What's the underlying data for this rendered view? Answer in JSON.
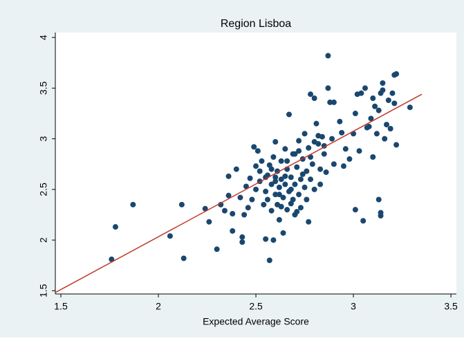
{
  "chart_data": {
    "type": "scatter",
    "title": "Region Lisboa",
    "x_label": "Expected Average Score",
    "xlim": [
      1.4716,
      3.528
    ],
    "ylim": [
      1.468,
      4.049
    ],
    "xticks": [
      1.5,
      2,
      2.5,
      3,
      3.5
    ],
    "yticks": [
      1.5,
      2,
      2.5,
      3,
      3.5,
      4
    ],
    "series": [
      {
        "color": "#1a476f",
        "x": [
          1.76,
          1.78,
          1.87,
          2.06,
          2.12,
          2.13,
          2.24,
          2.26,
          2.3,
          2.32,
          2.34,
          2.36,
          2.36,
          2.38,
          2.38,
          2.4,
          2.42,
          2.43,
          2.43,
          2.44,
          2.45,
          2.46,
          2.47,
          2.48,
          2.49,
          2.5,
          2.5,
          2.51,
          2.52,
          2.53,
          2.54,
          2.55,
          2.55,
          2.56,
          2.56,
          2.57,
          2.57,
          2.58,
          2.58,
          2.59,
          2.59,
          2.6,
          2.6,
          2.61,
          2.61,
          2.62,
          2.62,
          2.63,
          2.63,
          2.64,
          2.64,
          2.65,
          2.65,
          2.66,
          2.66,
          2.67,
          2.67,
          2.68,
          2.68,
          2.69,
          2.7,
          2.7,
          2.71,
          2.72,
          2.72,
          2.73,
          2.73,
          2.74,
          2.75,
          2.75,
          2.76,
          2.76,
          2.77,
          2.77,
          2.78,
          2.78,
          2.79,
          2.8,
          2.8,
          2.81,
          2.82,
          2.83,
          2.83,
          2.84,
          2.85,
          2.86,
          2.87,
          2.87,
          2.88,
          2.89,
          2.9,
          2.9,
          2.93,
          2.94,
          2.95,
          2.96,
          2.98,
          3,
          3.01,
          3.01,
          3.02,
          3.03,
          3.04,
          3.05,
          3.06,
          3.07,
          3.08,
          3.09,
          3.1,
          3.1,
          3.11,
          3.12,
          3.13,
          3.13,
          3.14,
          3.14,
          3.14,
          3.15,
          3.15,
          3.16,
          3.17,
          3.18,
          3.19,
          3.2,
          3.21,
          3.21,
          3.22,
          3.22,
          3.29,
          2.7,
          2.6,
          2.65,
          2.68,
          2.62,
          2.58,
          2.55,
          2.52,
          2.74,
          2.78,
          2.72,
          2.66,
          2.63,
          2.69,
          2.71,
          2.6,
          2.85,
          2.8,
          2.82
        ],
        "values": [
          1.81,
          2.13,
          2.35,
          2.04,
          2.35,
          1.82,
          2.31,
          2.18,
          1.91,
          2.35,
          2.29,
          2.44,
          2.63,
          2.09,
          2.26,
          2.7,
          2.42,
          2.03,
          1.98,
          2.25,
          2.53,
          2.32,
          2.61,
          2.4,
          2.92,
          2.73,
          2.5,
          2.88,
          2.58,
          2.78,
          2.35,
          2.01,
          2.48,
          2.64,
          2.4,
          1.8,
          2.74,
          2.29,
          2.55,
          2.82,
          2,
          2.97,
          2.45,
          2.68,
          2.35,
          2.52,
          2.2,
          2.6,
          2.78,
          2.42,
          2.07,
          2.55,
          2.9,
          2.3,
          2.7,
          2.48,
          3.24,
          2.62,
          2.36,
          2.85,
          2.25,
          2.55,
          2.72,
          2.45,
          2.98,
          2.6,
          2.32,
          2.8,
          2.52,
          3.05,
          2.4,
          2.68,
          2.91,
          2.18,
          2.6,
          3.44,
          2.75,
          2.5,
          3.4,
          3.15,
          2.95,
          2.7,
          2.55,
          3.02,
          2.85,
          2.67,
          3.5,
          3.82,
          3.36,
          3,
          2.75,
          3.36,
          3.17,
          3.06,
          2.73,
          2.9,
          2.8,
          3.05,
          2.3,
          3.25,
          3.44,
          2.88,
          3.45,
          2.19,
          3.5,
          3.11,
          3.12,
          3.2,
          2.82,
          3.4,
          3.32,
          3.05,
          2.4,
          3.28,
          2.27,
          3.45,
          2.24,
          3.48,
          3.55,
          3,
          3.14,
          3.38,
          3.1,
          3.45,
          3.35,
          3.63,
          3.64,
          2.94,
          3.31,
          2.85,
          2.58,
          2.63,
          2.5,
          2.45,
          2.7,
          2.62,
          2.68,
          2.65,
          2.82,
          2.88,
          2.78,
          2.33,
          2.4,
          2.28,
          2.62,
          2.93,
          2.97,
          3.03
        ]
      },
      {
        "color": "#c0392b",
        "mode": "line",
        "x": [
          1.4716,
          3.351
        ],
        "values": [
          1.482,
          3.44
        ]
      }
    ]
  }
}
